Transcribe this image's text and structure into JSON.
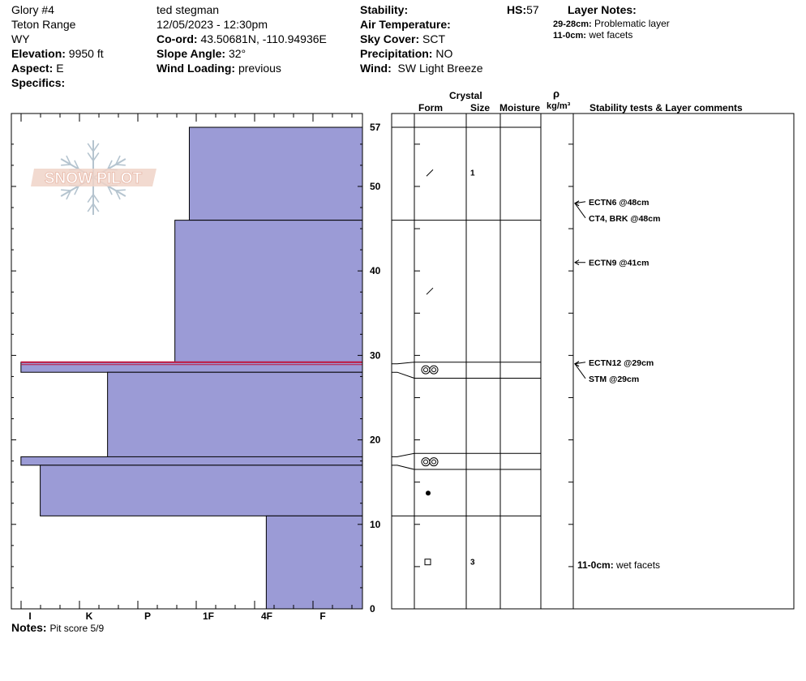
{
  "pit": {
    "name": "Glory #4",
    "range": "Teton Range",
    "state": "WY",
    "elevation_label": "Elevation:",
    "elevation": "9950 ft",
    "aspect_label": "Aspect:",
    "aspect": "E",
    "specifics_label": "Specifics:",
    "observer": "ted stegman",
    "datetime": "12/05/2023 - 12:30pm",
    "coord_label": "Co-ord:",
    "coord": "43.50681N, -110.94936E",
    "slope_label": "Slope Angle:",
    "slope": "32°",
    "wind_loading_label": "Wind Loading:",
    "wind_loading": "previous",
    "stability_label": "Stability:",
    "air_temp_label": "Air Temperature:",
    "sky_label": "Sky Cover:",
    "sky": "SCT",
    "precip_label": "Precipitation:",
    "precip": "NO",
    "wind_label": "Wind:",
    "wind": "SW Light Breeze",
    "hs_label": "HS:",
    "hs": "57",
    "layer_notes_label": "Layer Notes:",
    "layer_notes": [
      {
        "depth": "29-28cm:",
        "text": "Problematic layer"
      },
      {
        "depth": "11-0cm:",
        "text": "wet facets"
      }
    ],
    "notes_label": "Notes:",
    "notes": "Pit score 5/9"
  },
  "logo_text": "SNOW PILOT",
  "columns": {
    "crystal": "Crystal",
    "form": "Form",
    "size": "Size",
    "moisture": "Moisture",
    "rho": "ρ",
    "density_unit": "kg/m³",
    "stability": "Stability tests & Layer comments"
  },
  "chart_data": {
    "type": "bar",
    "title": "",
    "xlabel": "",
    "ylabel": "",
    "ylim": [
      0,
      57
    ],
    "y_ticks": [
      0,
      10,
      20,
      30,
      40,
      50,
      57
    ],
    "hardness_scale": [
      "I",
      "K",
      "P",
      "1F",
      "4F",
      "F"
    ],
    "hardness_scale_note": "axis reversed: F at right edge, I at left",
    "layers": [
      {
        "bottom": 46,
        "top": 57,
        "hardness": 3.6
      },
      {
        "bottom": 29.2,
        "top": 46,
        "hardness": 3.9
      },
      {
        "bottom": 28,
        "top": 29.2,
        "hardness": 7.1,
        "problematic": true
      },
      {
        "bottom": 17,
        "top": 28,
        "hardness": 5.3
      },
      {
        "bottom": 17,
        "top": 18,
        "hardness": 7.1
      },
      {
        "bottom": 11,
        "top": 17,
        "hardness": 6.7
      },
      {
        "bottom": 0,
        "top": 11,
        "hardness": 2.0
      }
    ],
    "layer_boundaries": [
      57,
      46,
      29.2,
      27.3,
      18.4,
      16.5,
      11,
      0
    ],
    "crystals": [
      {
        "depth": 51.6,
        "form": "precipitation-particle",
        "size": "1"
      },
      {
        "depth": 37.6,
        "form": "precipitation-particle",
        "size": ""
      },
      {
        "depth": 28.3,
        "form": "surface-hoar",
        "size": ""
      },
      {
        "depth": 17.4,
        "form": "surface-hoar",
        "size": ""
      },
      {
        "depth": 13.7,
        "form": "rounded-grain",
        "size": ""
      },
      {
        "depth": 5.5,
        "form": "faceted-crystal",
        "size": "3"
      }
    ],
    "stability_tests": [
      {
        "depth": 48,
        "label": "ECTN6 @48cm"
      },
      {
        "depth": 48,
        "label": "CT4, BRK @48cm"
      },
      {
        "depth": 41,
        "label": "ECTN9 @41cm"
      },
      {
        "depth": 29,
        "label": "ECTN12 @29cm"
      },
      {
        "depth": 29,
        "label": "STM @29cm"
      }
    ],
    "layer_comments": [
      {
        "depth": 5.3,
        "depth_label": "11-0cm:",
        "text": "wet facets"
      }
    ]
  }
}
